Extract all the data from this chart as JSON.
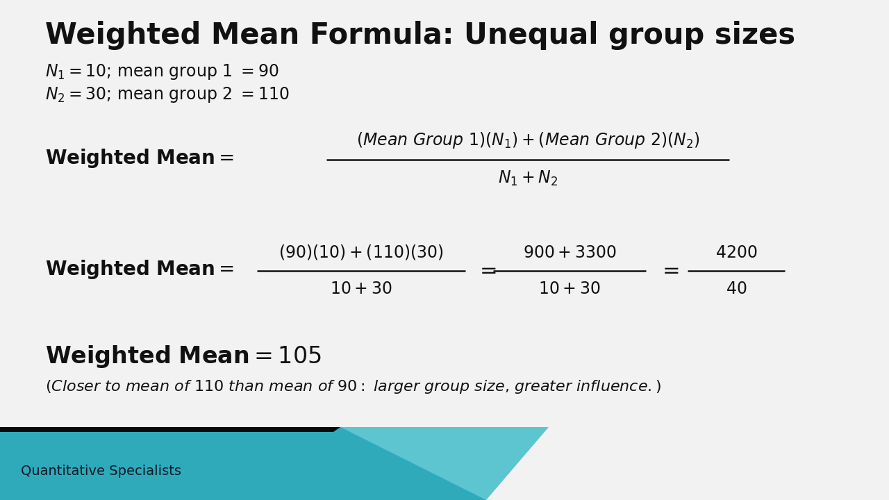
{
  "title": "Weighted Mean Formula: Unequal group sizes",
  "title_fontsize": 30,
  "bg_color": "#f2f2f2",
  "text_color": "#111111",
  "footer": "Quantitative Specialists",
  "teal_color": "#2eaabb",
  "teal_light": "#5cc5d0",
  "footer_text_color": "#0d1a26"
}
